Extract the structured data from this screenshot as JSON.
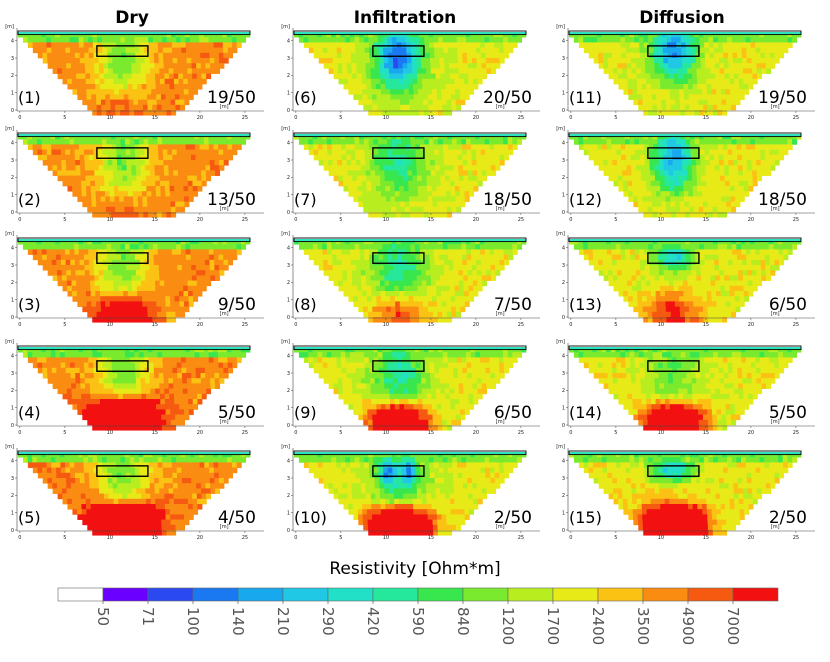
{
  "columns": [
    "Dry",
    "Infiltration",
    "Diffusion"
  ],
  "colorbar": {
    "title": "Resistivity [Ohm*m]",
    "ticks": [
      "50",
      "71",
      "100",
      "140",
      "210",
      "290",
      "420",
      "590",
      "840",
      "1200",
      "1700",
      "2400",
      "3500",
      "4900",
      "7000"
    ],
    "colors": [
      "#ffffff",
      "#6a00ff",
      "#2a49f0",
      "#1a78f0",
      "#18a8ee",
      "#20c8e6",
      "#22e0c8",
      "#26e89c",
      "#38e64e",
      "#7aea2e",
      "#b8ee20",
      "#e8ea18",
      "#fbc214",
      "#fa8c12",
      "#f65a10",
      "#f21010"
    ]
  },
  "chart_data": {
    "type": "heatmap",
    "layout": "5x3 grid of resistivity tomography sections",
    "xlabel": "[m]",
    "ylabel": "[m]",
    "xlim": [
      0,
      25
    ],
    "ylim": [
      0,
      4.5
    ],
    "x_ticks": [
      "0",
      "5",
      "10",
      "15",
      "20",
      "25"
    ],
    "y_ticks": [
      "0",
      "1",
      "2",
      "3",
      "4"
    ],
    "box_extent": {
      "x": [
        8.5,
        14
      ],
      "depth_m": [
        3.1,
        3.7
      ]
    },
    "panels": [
      {
        "label": "(1)",
        "fraction": "19/50",
        "column": "Dry",
        "state": "dry",
        "stage": 0
      },
      {
        "label": "(2)",
        "fraction": "13/50",
        "column": "Dry",
        "state": "dry",
        "stage": 1
      },
      {
        "label": "(3)",
        "fraction": "9/50",
        "column": "Dry",
        "state": "dry",
        "stage": 2
      },
      {
        "label": "(4)",
        "fraction": "5/50",
        "column": "Dry",
        "state": "dry",
        "stage": 3
      },
      {
        "label": "(5)",
        "fraction": "4/50",
        "column": "Dry",
        "state": "dry",
        "stage": 4
      },
      {
        "label": "(6)",
        "fraction": "20/50",
        "column": "Infiltration",
        "state": "infiltration",
        "stage": 0
      },
      {
        "label": "(7)",
        "fraction": "18/50",
        "column": "Infiltration",
        "state": "infiltration",
        "stage": 1
      },
      {
        "label": "(8)",
        "fraction": "7/50",
        "column": "Infiltration",
        "state": "infiltration",
        "stage": 2
      },
      {
        "label": "(9)",
        "fraction": "6/50",
        "column": "Infiltration",
        "state": "infiltration",
        "stage": 3
      },
      {
        "label": "(10)",
        "fraction": "2/50",
        "column": "Infiltration",
        "state": "infiltration",
        "stage": 4
      },
      {
        "label": "(11)",
        "fraction": "19/50",
        "column": "Diffusion",
        "state": "diffusion",
        "stage": 0
      },
      {
        "label": "(12)",
        "fraction": "18/50",
        "column": "Diffusion",
        "state": "diffusion",
        "stage": 1
      },
      {
        "label": "(13)",
        "fraction": "6/50",
        "column": "Diffusion",
        "state": "diffusion",
        "stage": 2
      },
      {
        "label": "(14)",
        "fraction": "5/50",
        "column": "Diffusion",
        "state": "diffusion",
        "stage": 3
      },
      {
        "label": "(15)",
        "fraction": "2/50",
        "column": "Diffusion",
        "state": "diffusion",
        "stage": 4
      }
    ]
  }
}
